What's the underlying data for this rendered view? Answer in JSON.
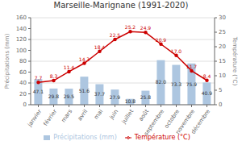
{
  "chart_data": {
    "type": "bar",
    "title": "Marseille-Marignane (1991-2020)",
    "categories": [
      "janvier",
      "février",
      "mars",
      "avril",
      "mai",
      "juin",
      "juillet",
      "août",
      "septembre",
      "octobre",
      "novembre",
      "décembre"
    ],
    "series": [
      {
        "name": "Précipitations (mm)",
        "type": "bar",
        "color": "#adc6e0",
        "values": [
          47.1,
          29.8,
          29.5,
          51.6,
          37.7,
          27.9,
          10.8,
          25.8,
          82.0,
          73.3,
          75.9,
          40.9
        ],
        "value_labels": [
          "47.1",
          "29.8",
          "29.5",
          "51.6",
          "37.7",
          "27.9",
          "10.8",
          "25.8",
          "82.0",
          "73.3",
          "75.9",
          "40.9"
        ]
      },
      {
        "name": "Température (°C)",
        "type": "line",
        "color": "#cc0000",
        "axis": "y2",
        "marker": "circle",
        "values": [
          7.7,
          8.3,
          11.4,
          14.3,
          18.4,
          22.5,
          25.2,
          24.9,
          20.9,
          17.0,
          11.7,
          8.4
        ],
        "value_labels": [
          "7.7",
          "8.3",
          "11.4",
          "14.3",
          "18.4",
          "22.5",
          "25.2",
          "24.9",
          "20.9",
          "17.0",
          "11.7",
          "8.4"
        ]
      }
    ],
    "ylabel": "Précipitations (mm)",
    "y2label": "Température (°C)",
    "ylim": [
      0,
      160
    ],
    "yticks": [
      0,
      20,
      40,
      60,
      80,
      100,
      120,
      140,
      160
    ],
    "y2lim": [
      0,
      30
    ],
    "y2ticks": [
      0,
      5,
      10,
      15,
      20,
      25,
      30
    ],
    "grid": true,
    "legend": "bottom",
    "data_labels": true
  }
}
